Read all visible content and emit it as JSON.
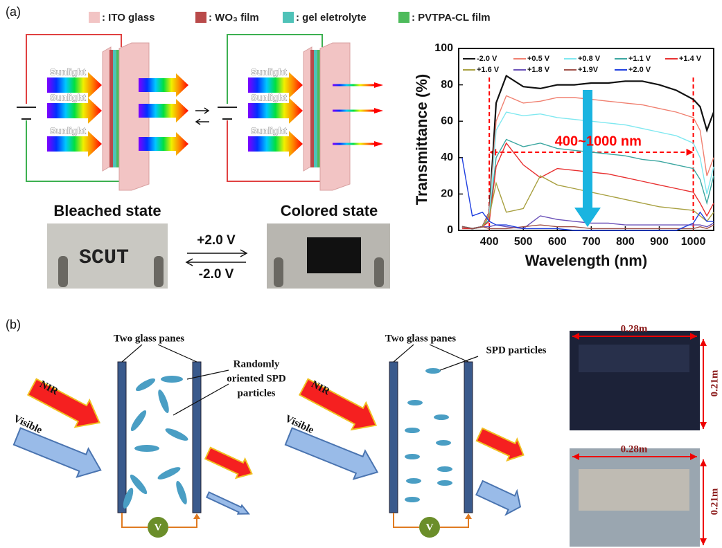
{
  "panel_a": {
    "label": "(a)",
    "legend": [
      {
        "text": ": ITO glass",
        "color": "#f2c4c4"
      },
      {
        "text": ": WO₃ film",
        "color": "#b94a4a"
      },
      {
        "text": ": gel eletrolyte",
        "color": "#4fc2b8"
      },
      {
        "text": ": PVTPA-CL film",
        "color": "#4dbb5b"
      }
    ],
    "left_device": {
      "arrow_labels": [
        "Sunlight",
        "Sunlight",
        "Sunlight"
      ]
    },
    "right_device": {
      "arrow_labels": [
        "Sunlight",
        "Sunlight",
        "Sunlight"
      ]
    },
    "bleached_state": "Bleached state",
    "colored_state": "Colored state",
    "photo_text": "SCUT",
    "forward_voltage": "+2.0 V",
    "reverse_voltage": "-2.0 V"
  },
  "chart_data": {
    "type": "line",
    "xlabel": "Wavelength (nm)",
    "ylabel": "Transmittance (%)",
    "xlim": [
      310,
      1060
    ],
    "ylim": [
      0,
      100
    ],
    "xticks": [
      400,
      500,
      600,
      700,
      800,
      900,
      1000
    ],
    "yticks": [
      0,
      20,
      40,
      60,
      80,
      100
    ],
    "annotation": {
      "text": "400~1000 nm",
      "range": [
        400,
        1000
      ]
    },
    "x": [
      320,
      350,
      380,
      400,
      420,
      450,
      500,
      550,
      600,
      650,
      700,
      750,
      800,
      850,
      900,
      950,
      1000,
      1020,
      1040,
      1060
    ],
    "series": [
      {
        "name": "-2.0 V",
        "color": "#111111",
        "values": [
          2,
          1,
          2,
          10,
          70,
          85,
          79,
          78,
          80,
          80,
          81,
          81,
          82,
          82,
          80,
          77,
          72,
          68,
          55,
          65
        ]
      },
      {
        "name": "+0.5 V",
        "color": "#f08070",
        "values": [
          2,
          1,
          2,
          10,
          60,
          74,
          70,
          71,
          73,
          73,
          72,
          71,
          70,
          69,
          67,
          65,
          62,
          55,
          30,
          40
        ]
      },
      {
        "name": "+0.8 V",
        "color": "#7fe8f0",
        "values": [
          2,
          1,
          2,
          8,
          55,
          65,
          63,
          64,
          62,
          61,
          60,
          59,
          58,
          56,
          54,
          52,
          48,
          40,
          20,
          35
        ]
      },
      {
        "name": "+1.1 V",
        "color": "#3aa6a0",
        "values": [
          2,
          1,
          2,
          6,
          40,
          50,
          46,
          48,
          45,
          44,
          43,
          42,
          41,
          39,
          38,
          36,
          34,
          28,
          15,
          30
        ]
      },
      {
        "name": "+1.4 V",
        "color": "#e83030",
        "values": [
          1,
          1,
          2,
          5,
          35,
          48,
          36,
          29,
          34,
          33,
          32,
          31,
          29,
          27,
          25,
          23,
          21,
          15,
          8,
          15
        ]
      },
      {
        "name": "+1.6 V",
        "color": "#a8a040",
        "values": [
          2,
          1,
          2,
          8,
          26,
          10,
          12,
          30,
          25,
          23,
          21,
          19,
          17,
          15,
          13,
          12,
          11,
          8,
          5,
          10
        ]
      },
      {
        "name": "+1.8 V",
        "color": "#6a50b8",
        "values": [
          2,
          1,
          2,
          2,
          3,
          2,
          1,
          8,
          6,
          5,
          4,
          4,
          3,
          3,
          3,
          3,
          3,
          3,
          2,
          4
        ]
      },
      {
        "name": "+1.9V",
        "color": "#a0524a",
        "values": [
          2,
          1,
          2,
          1,
          1,
          1,
          2,
          3,
          2,
          2,
          1,
          1,
          1,
          1,
          1,
          1,
          1,
          2,
          1,
          3
        ]
      },
      {
        "name": "+2.0 V",
        "color": "#1f3fe0",
        "values": [
          40,
          8,
          10,
          5,
          3,
          3,
          1,
          1,
          1,
          0,
          0,
          0,
          0,
          0,
          0,
          0,
          4,
          10,
          5,
          5
        ]
      }
    ]
  },
  "panel_b": {
    "label": "(b)",
    "left": {
      "panes_label": "Two glass panes",
      "particles_label": [
        "Randomly",
        "oriented SPD",
        "particles"
      ],
      "nir": "NIR",
      "visible": "Visible",
      "meter": "V"
    },
    "right": {
      "panes_label": "Two glass panes",
      "particles_label": "SPD particles",
      "nir": "NIR",
      "visible": "Visible",
      "meter": "V"
    },
    "photos": [
      {
        "width": "0.28m",
        "height": "0.21m"
      },
      {
        "width": "0.28m",
        "height": "0.21m"
      }
    ]
  }
}
